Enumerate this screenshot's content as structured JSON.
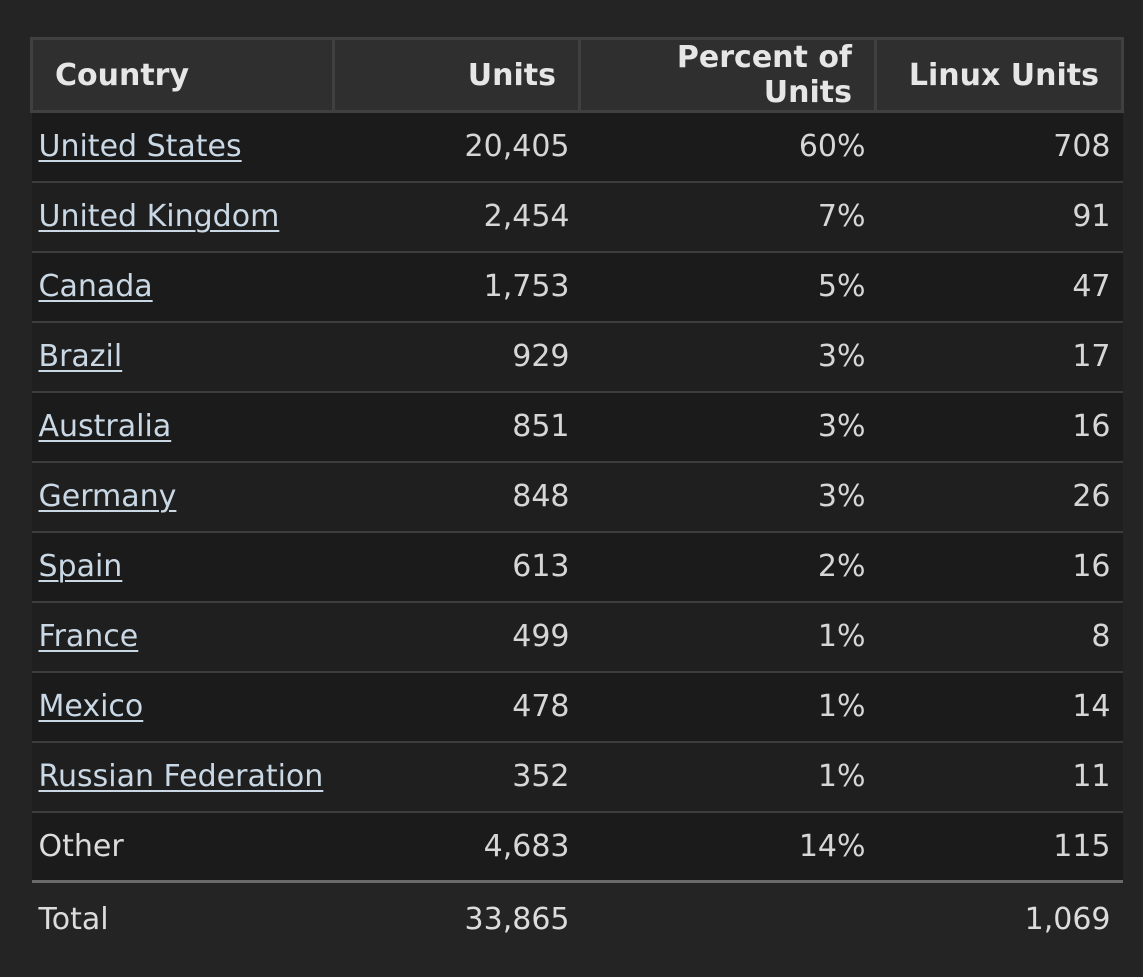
{
  "table": {
    "headers": {
      "country": "Country",
      "units": "Units",
      "percent": "Percent of Units",
      "linux": "Linux Units"
    },
    "rows": [
      {
        "country": "United States",
        "units": "20,405",
        "percent": "60%",
        "linux": "708",
        "link": true
      },
      {
        "country": "United Kingdom",
        "units": "2,454",
        "percent": "7%",
        "linux": "91",
        "link": true
      },
      {
        "country": "Canada",
        "units": "1,753",
        "percent": "5%",
        "linux": "47",
        "link": true
      },
      {
        "country": "Brazil",
        "units": "929",
        "percent": "3%",
        "linux": "17",
        "link": true
      },
      {
        "country": "Australia",
        "units": "851",
        "percent": "3%",
        "linux": "16",
        "link": true
      },
      {
        "country": "Germany",
        "units": "848",
        "percent": "3%",
        "linux": "26",
        "link": true
      },
      {
        "country": "Spain",
        "units": "613",
        "percent": "2%",
        "linux": "16",
        "link": true
      },
      {
        "country": "France",
        "units": "499",
        "percent": "1%",
        "linux": "8",
        "link": true
      },
      {
        "country": "Mexico",
        "units": "478",
        "percent": "1%",
        "linux": "14",
        "link": true
      },
      {
        "country": "Russian Federation",
        "units": "352",
        "percent": "1%",
        "linux": "11",
        "link": true
      },
      {
        "country": "Other",
        "units": "4,683",
        "percent": "14%",
        "linux": "115",
        "link": false
      }
    ],
    "total": {
      "label": "Total",
      "units": "33,865",
      "percent": "",
      "linux": "1,069"
    }
  },
  "colors": {
    "background": "#242424",
    "header_bg": "#2f2f2f",
    "link": "#c9d8e4",
    "text": "#dcdcdc"
  }
}
